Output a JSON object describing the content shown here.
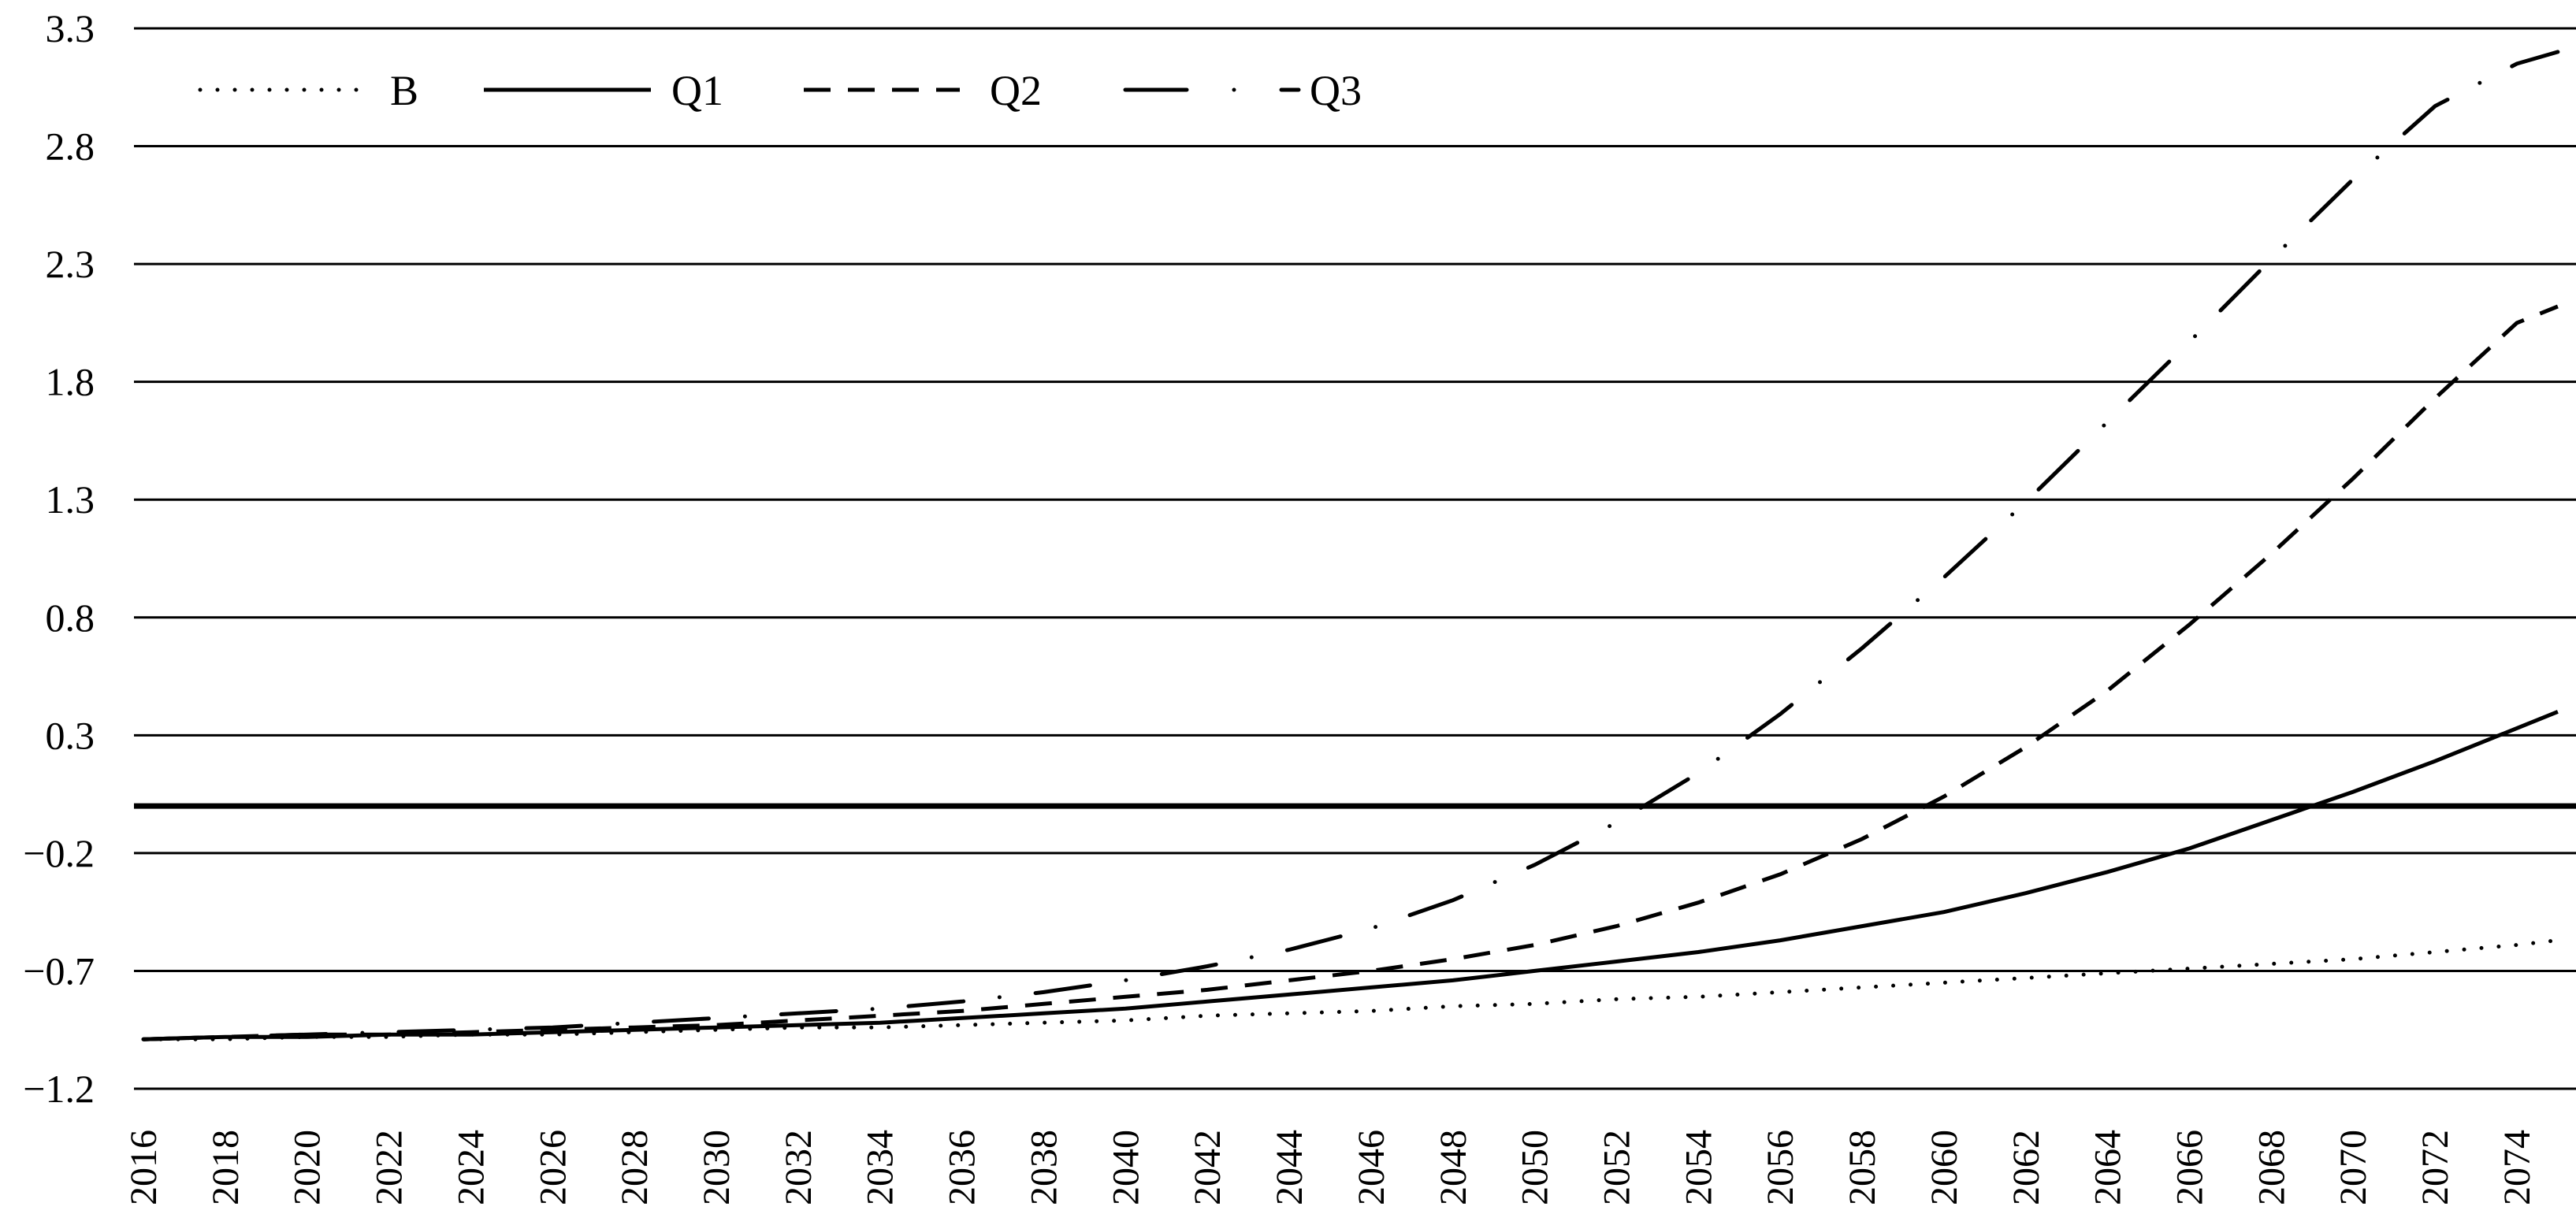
{
  "chart_data": {
    "type": "line",
    "title": "",
    "xlabel": "",
    "ylabel": "",
    "ylim": [
      -1.2,
      3.3
    ],
    "xlim": [
      2016,
      2075
    ],
    "y_ticks": [
      "3.3",
      "2.8",
      "2.3",
      "1.8",
      "1.3",
      "0.8",
      "0.3",
      "-0.2",
      "-0.7",
      "-1.2"
    ],
    "x_ticks": [
      "2016",
      "2018",
      "2020",
      "2022",
      "2024",
      "2026",
      "2028",
      "2030",
      "2032",
      "2034",
      "2036",
      "2038",
      "2040",
      "2042",
      "2044",
      "2046",
      "2048",
      "2050",
      "2052",
      "2054",
      "2056",
      "2058",
      "2060",
      "2062",
      "2064",
      "2066",
      "2068",
      "2070",
      "2072",
      "2074"
    ],
    "zero_line": 0,
    "grid": true,
    "legend_position": "top-left",
    "x": [
      2016,
      2018,
      2020,
      2022,
      2024,
      2026,
      2028,
      2030,
      2032,
      2034,
      2036,
      2038,
      2040,
      2042,
      2044,
      2046,
      2048,
      2050,
      2052,
      2054,
      2056,
      2058,
      2060,
      2062,
      2064,
      2066,
      2068,
      2070,
      2072,
      2074,
      2075
    ],
    "series": [
      {
        "name": "B",
        "dash": "dotted",
        "values": [
          -0.99,
          -0.99,
          -0.98,
          -0.98,
          -0.97,
          -0.97,
          -0.96,
          -0.95,
          -0.94,
          -0.94,
          -0.93,
          -0.92,
          -0.91,
          -0.89,
          -0.88,
          -0.87,
          -0.85,
          -0.84,
          -0.82,
          -0.81,
          -0.79,
          -0.77,
          -0.75,
          -0.73,
          -0.71,
          -0.69,
          -0.67,
          -0.65,
          -0.62,
          -0.59,
          -0.57
        ]
      },
      {
        "name": "Q1",
        "dash": "solid",
        "values": [
          -0.99,
          -0.98,
          -0.98,
          -0.97,
          -0.97,
          -0.96,
          -0.95,
          -0.94,
          -0.93,
          -0.92,
          -0.9,
          -0.88,
          -0.86,
          -0.83,
          -0.8,
          -0.77,
          -0.74,
          -0.7,
          -0.66,
          -0.62,
          -0.57,
          -0.51,
          -0.45,
          -0.37,
          -0.28,
          -0.18,
          -0.06,
          0.06,
          0.19,
          0.33,
          0.4
        ]
      },
      {
        "name": "Q2",
        "dash": "dashed",
        "values": [
          -0.99,
          -0.98,
          -0.97,
          -0.97,
          -0.96,
          -0.95,
          -0.94,
          -0.93,
          -0.91,
          -0.89,
          -0.87,
          -0.84,
          -0.81,
          -0.78,
          -0.74,
          -0.7,
          -0.65,
          -0.59,
          -0.51,
          -0.41,
          -0.29,
          -0.14,
          0.04,
          0.25,
          0.49,
          0.77,
          1.07,
          1.39,
          1.73,
          2.05,
          2.12
        ]
      },
      {
        "name": "Q3",
        "dash": "dashdot",
        "values": [
          -0.99,
          -0.98,
          -0.97,
          -0.96,
          -0.95,
          -0.94,
          -0.92,
          -0.9,
          -0.88,
          -0.86,
          -0.83,
          -0.79,
          -0.74,
          -0.68,
          -0.61,
          -0.52,
          -0.4,
          -0.25,
          -0.07,
          0.14,
          0.39,
          0.67,
          0.97,
          1.29,
          1.63,
          1.97,
          2.32,
          2.66,
          2.97,
          3.15,
          3.2
        ]
      }
    ]
  }
}
